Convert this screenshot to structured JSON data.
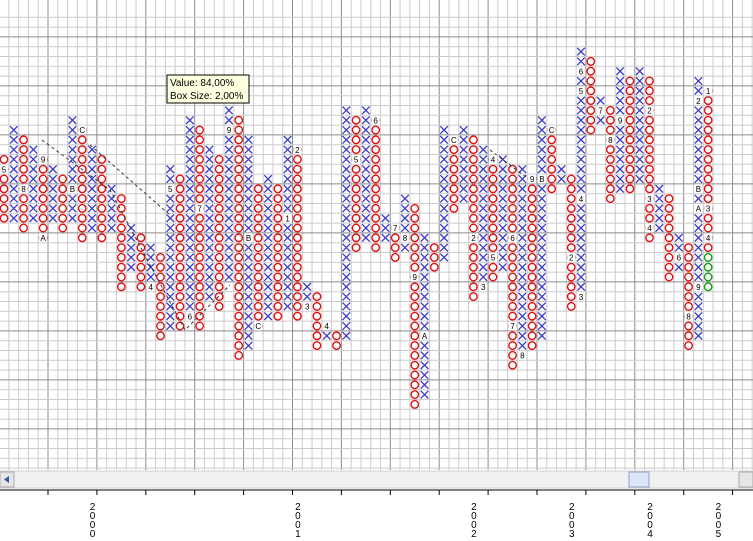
{
  "chart_data": {
    "type": "point_and_figure",
    "tooltip": {
      "value_label": "Value: 84,00%",
      "box_label": "Box Size: 2,00%"
    },
    "first_column": "O",
    "x_color": "#3a3acc",
    "o_color": "#e01010",
    "pending_color": "#10a010",
    "pending_boxes": 4,
    "columns": [
      {
        "high": 32,
        "low": 26
      },
      {
        "high": 35,
        "low": 26
      },
      {
        "high": 34,
        "low": 25
      },
      {
        "high": 33,
        "low": 26
      },
      {
        "high": 32,
        "low": 24
      },
      {
        "high": 31,
        "low": 26
      },
      {
        "high": 30,
        "low": 25
      },
      {
        "high": 36,
        "low": 26
      },
      {
        "high": 35,
        "low": 24
      },
      {
        "high": 33,
        "low": 25
      },
      {
        "high": 32,
        "low": 24
      },
      {
        "high": 29,
        "low": 25
      },
      {
        "high": 28,
        "low": 19
      },
      {
        "high": 25,
        "low": 21
      },
      {
        "high": 24,
        "low": 19
      },
      {
        "high": 23,
        "low": 19
      },
      {
        "high": 22,
        "low": 14
      },
      {
        "high": 31,
        "low": 15
      },
      {
        "high": 30,
        "low": 15
      },
      {
        "high": 36,
        "low": 16
      },
      {
        "high": 35,
        "low": 15
      },
      {
        "high": 33,
        "low": 18
      },
      {
        "high": 32,
        "low": 17
      },
      {
        "high": 37,
        "low": 20
      },
      {
        "high": 36,
        "low": 12
      },
      {
        "high": 34,
        "low": 13
      },
      {
        "high": 29,
        "low": 15
      },
      {
        "high": 30,
        "low": 16
      },
      {
        "high": 29,
        "low": 16
      },
      {
        "high": 34,
        "low": 17
      },
      {
        "high": 33,
        "low": 16
      },
      {
        "high": 19,
        "low": 17
      },
      {
        "high": 18,
        "low": 13
      },
      {
        "high": 15,
        "low": 14
      },
      {
        "high": 14,
        "low": 13
      },
      {
        "high": 37,
        "low": 14
      },
      {
        "high": 36,
        "low": 23
      },
      {
        "high": 37,
        "low": 24
      },
      {
        "high": 36,
        "low": 23
      },
      {
        "high": 26,
        "low": 24
      },
      {
        "high": 25,
        "low": 22
      },
      {
        "high": 28,
        "low": 23
      },
      {
        "high": 27,
        "low": 7
      },
      {
        "high": 24,
        "low": 8
      },
      {
        "high": 23,
        "low": 21
      },
      {
        "high": 35,
        "low": 22
      },
      {
        "high": 34,
        "low": 27
      },
      {
        "high": 35,
        "low": 28
      },
      {
        "high": 34,
        "low": 18
      },
      {
        "high": 33,
        "low": 19
      },
      {
        "high": 32,
        "low": 20
      },
      {
        "high": 32,
        "low": 21
      },
      {
        "high": 31,
        "low": 11
      },
      {
        "high": 31,
        "low": 12
      },
      {
        "high": 30,
        "low": 13
      },
      {
        "high": 36,
        "low": 14
      },
      {
        "high": 35,
        "low": 29
      },
      {
        "high": 31,
        "low": 30
      },
      {
        "high": 30,
        "low": 17
      },
      {
        "high": 43,
        "low": 18
      },
      {
        "high": 42,
        "low": 35
      },
      {
        "high": 38,
        "low": 36
      },
      {
        "high": 37,
        "low": 28
      },
      {
        "high": 41,
        "low": 29
      },
      {
        "high": 40,
        "low": 29
      },
      {
        "high": 41,
        "low": 30
      },
      {
        "high": 40,
        "low": 24
      },
      {
        "high": 29,
        "low": 25
      },
      {
        "high": 28,
        "low": 20
      },
      {
        "high": 24,
        "low": 21
      },
      {
        "high": 23,
        "low": 13
      },
      {
        "high": 40,
        "low": 14
      },
      {
        "high": 39,
        "low": 19
      }
    ],
    "markers": [
      {
        "column": 0,
        "box": 31,
        "label": "5"
      },
      {
        "column": 2,
        "box": 29,
        "label": "8"
      },
      {
        "column": 4,
        "box": 32,
        "label": "9"
      },
      {
        "column": 4,
        "box": 24,
        "label": "A"
      },
      {
        "column": 7,
        "box": 29,
        "label": "B"
      },
      {
        "column": 8,
        "box": 35,
        "label": "C"
      },
      {
        "column": 15,
        "box": 19,
        "label": "4"
      },
      {
        "column": 17,
        "box": 29,
        "label": "5"
      },
      {
        "column": 19,
        "box": 16,
        "label": "6"
      },
      {
        "column": 20,
        "box": 27,
        "label": "7"
      },
      {
        "column": 23,
        "box": 35,
        "label": "9"
      },
      {
        "column": 25,
        "box": 24,
        "label": "B"
      },
      {
        "column": 26,
        "box": 15,
        "label": "C"
      },
      {
        "column": 29,
        "box": 26,
        "label": "1"
      },
      {
        "column": 30,
        "box": 33,
        "label": "2"
      },
      {
        "column": 31,
        "box": 17,
        "label": "3"
      },
      {
        "column": 33,
        "box": 15,
        "label": "4"
      },
      {
        "column": 36,
        "box": 32,
        "label": "5"
      },
      {
        "column": 38,
        "box": 36,
        "label": "6"
      },
      {
        "column": 40,
        "box": 25,
        "label": "7"
      },
      {
        "column": 41,
        "box": 24,
        "label": "8"
      },
      {
        "column": 42,
        "box": 20,
        "label": "9"
      },
      {
        "column": 43,
        "box": 14,
        "label": "A"
      },
      {
        "column": 46,
        "box": 34,
        "label": "C"
      },
      {
        "column": 48,
        "box": 24,
        "label": "2"
      },
      {
        "column": 49,
        "box": 19,
        "label": "3"
      },
      {
        "column": 50,
        "box": 32,
        "label": "4"
      },
      {
        "column": 50,
        "box": 22,
        "label": "5"
      },
      {
        "column": 52,
        "box": 24,
        "label": "6"
      },
      {
        "column": 52,
        "box": 15,
        "label": "7"
      },
      {
        "column": 53,
        "box": 12,
        "label": "8"
      },
      {
        "column": 54,
        "box": 30,
        "label": "9"
      },
      {
        "column": 55,
        "box": 30,
        "label": "B"
      },
      {
        "column": 56,
        "box": 35,
        "label": "C"
      },
      {
        "column": 58,
        "box": 22,
        "label": "2"
      },
      {
        "column": 59,
        "box": 18,
        "label": "3"
      },
      {
        "column": 59,
        "box": 28,
        "label": "4"
      },
      {
        "column": 59,
        "box": 39,
        "label": "5"
      },
      {
        "column": 59,
        "box": 41,
        "label": "6"
      },
      {
        "column": 61,
        "box": 37,
        "label": "7"
      },
      {
        "column": 62,
        "box": 34,
        "label": "8"
      },
      {
        "column": 63,
        "box": 36,
        "label": "9"
      },
      {
        "column": 66,
        "box": 37,
        "label": "2"
      },
      {
        "column": 66,
        "box": 28,
        "label": "3"
      },
      {
        "column": 66,
        "box": 25,
        "label": "4"
      },
      {
        "column": 69,
        "box": 22,
        "label": "6"
      },
      {
        "column": 70,
        "box": 16,
        "label": "8"
      },
      {
        "column": 71,
        "box": 19,
        "label": "9"
      },
      {
        "column": 71,
        "box": 27,
        "label": "A"
      },
      {
        "column": 71,
        "box": 29,
        "label": "B"
      },
      {
        "column": 71,
        "box": 38,
        "label": "2"
      },
      {
        "column": 72,
        "box": 39,
        "label": "1"
      },
      {
        "column": 72,
        "box": 27,
        "label": "3"
      },
      {
        "column": 72,
        "box": 24,
        "label": "4"
      }
    ],
    "x_labels": [
      {
        "label": "2000",
        "column": 9
      },
      {
        "label": "2001",
        "column": 30
      },
      {
        "label": "2002",
        "column": 48
      },
      {
        "label": "2003",
        "column": 58
      },
      {
        "label": "2004",
        "column": 66
      },
      {
        "label": "2005",
        "column": 73
      }
    ]
  }
}
